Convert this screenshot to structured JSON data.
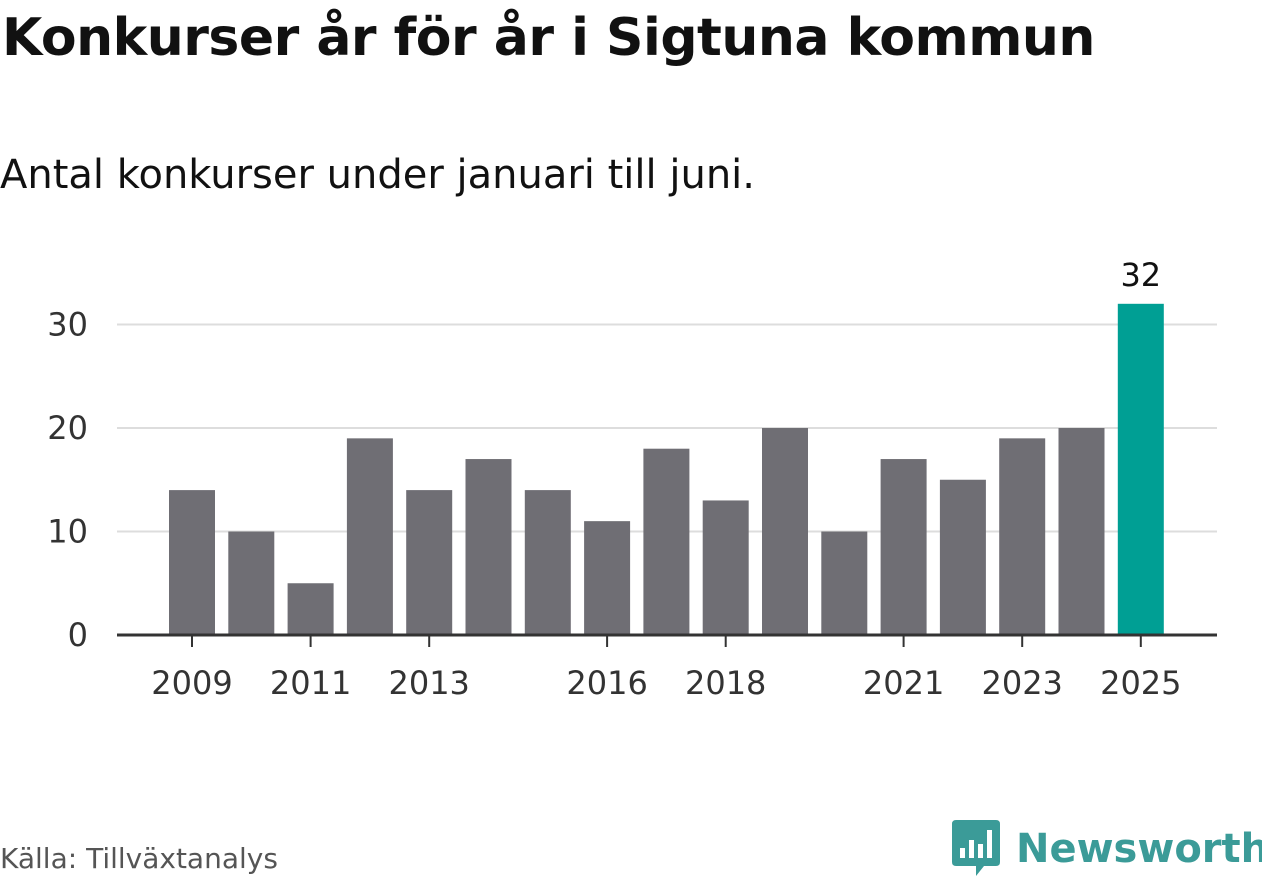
{
  "header": {
    "title": "Konkurser år för år i Sigtuna kommun",
    "subtitle": "Antal konkurser under januari till juni."
  },
  "footer": {
    "source": "Källa: Tillväxtanalys",
    "brand": "Newsworthy"
  },
  "colors": {
    "bar": "#6f6e74",
    "highlight": "#009f94",
    "grid": "#dddddd",
    "axis": "#333333",
    "brand": "#3b9b98"
  },
  "chart_data": {
    "type": "bar",
    "x": [
      2009,
      2010,
      2011,
      2012,
      2013,
      2014,
      2015,
      2016,
      2017,
      2018,
      2019,
      2020,
      2021,
      2022,
      2023,
      2024,
      2025
    ],
    "values": [
      14,
      10,
      5,
      19,
      14,
      17,
      14,
      11,
      18,
      13,
      20,
      10,
      17,
      15,
      19,
      20,
      32
    ],
    "x_tick_labels": [
      2009,
      2011,
      2013,
      2016,
      2018,
      2021,
      2023,
      2025
    ],
    "y_ticks": [
      0,
      10,
      20,
      30
    ],
    "ylim": [
      0,
      32
    ],
    "highlight_x": 2025,
    "data_labels": [
      {
        "x": 2025,
        "text": "32"
      }
    ],
    "grid": true,
    "legend": "none",
    "title": "Konkurser år för år i Sigtuna kommun",
    "subtitle": "Antal konkurser under januari till juni.",
    "xlabel": "",
    "ylabel": ""
  }
}
